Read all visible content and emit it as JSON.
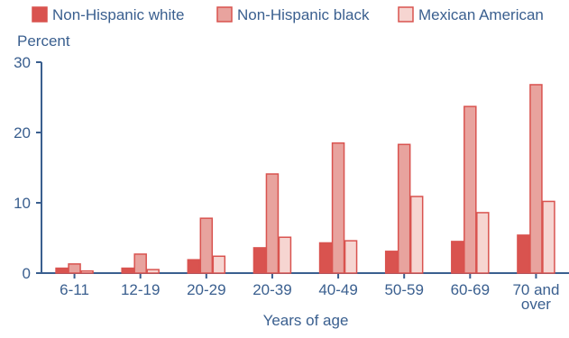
{
  "chart_data": {
    "type": "bar",
    "ylabel": "Percent",
    "xlabel": "Years of age",
    "ylim": [
      0,
      30
    ],
    "yticks": [
      0,
      10,
      20,
      30
    ],
    "categories": [
      "6-11",
      "12-19",
      "20-29",
      "20-39",
      "40-49",
      "50-59",
      "60-69",
      "70 and over"
    ],
    "series": [
      {
        "name": "Non-Hispanic white",
        "color": "#d9534f",
        "values": [
          0.7,
          0.7,
          1.9,
          3.6,
          4.3,
          3.1,
          4.5,
          5.4
        ]
      },
      {
        "name": "Non-Hispanic black",
        "color": "#e8a39e",
        "values": [
          1.3,
          2.7,
          7.8,
          14.1,
          18.5,
          18.3,
          23.7,
          26.8
        ]
      },
      {
        "name": "Mexican American",
        "color": "#f6d5d1",
        "values": [
          0.3,
          0.5,
          2.4,
          5.1,
          4.6,
          10.9,
          8.6,
          10.2
        ]
      }
    ],
    "legend_position": "top",
    "grid": false
  }
}
